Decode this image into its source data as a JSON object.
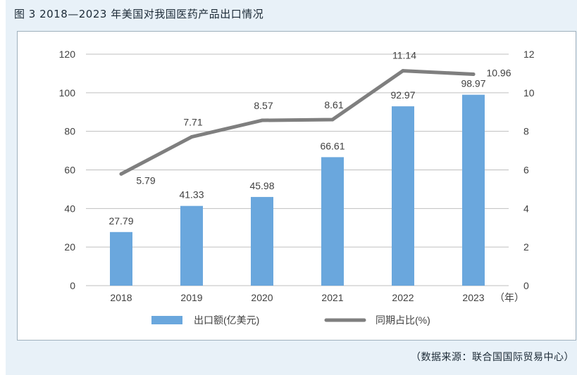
{
  "figure": {
    "title": "图 3   2018—2023 年美国对我国医药产品出口情况",
    "source": "（数据来源：联合国国际贸易中心）"
  },
  "chart_data": {
    "type": "bar+line",
    "categories": [
      "2018",
      "2019",
      "2020",
      "2021",
      "2022",
      "2023"
    ],
    "x_unit": "（年）",
    "series": [
      {
        "name": "出口额(亿美元)",
        "type": "bar",
        "axis": "left",
        "color": "#6aa7dd",
        "values": [
          27.79,
          41.33,
          45.98,
          66.61,
          92.97,
          98.97
        ],
        "labels": [
          "27.79",
          "41.33",
          "45.98",
          "66.61",
          "92.97",
          "98.97"
        ]
      },
      {
        "name": "同期占比(%)",
        "type": "line",
        "axis": "right",
        "color": "#7f7f7f",
        "values": [
          5.79,
          7.71,
          8.57,
          8.61,
          11.14,
          10.96
        ],
        "labels": [
          "5.79",
          "7.71",
          "8.57",
          "8.61",
          "11.14",
          "10.96"
        ]
      }
    ],
    "y_left": {
      "min": 0,
      "max": 120,
      "step": 20,
      "ticks": [
        "0",
        "20",
        "40",
        "60",
        "80",
        "100",
        "120"
      ]
    },
    "y_right": {
      "min": 0,
      "max": 12,
      "step": 2,
      "ticks": [
        "0",
        "2",
        "4",
        "6",
        "8",
        "10",
        "12"
      ]
    },
    "grid": true,
    "legend_position": "bottom"
  }
}
